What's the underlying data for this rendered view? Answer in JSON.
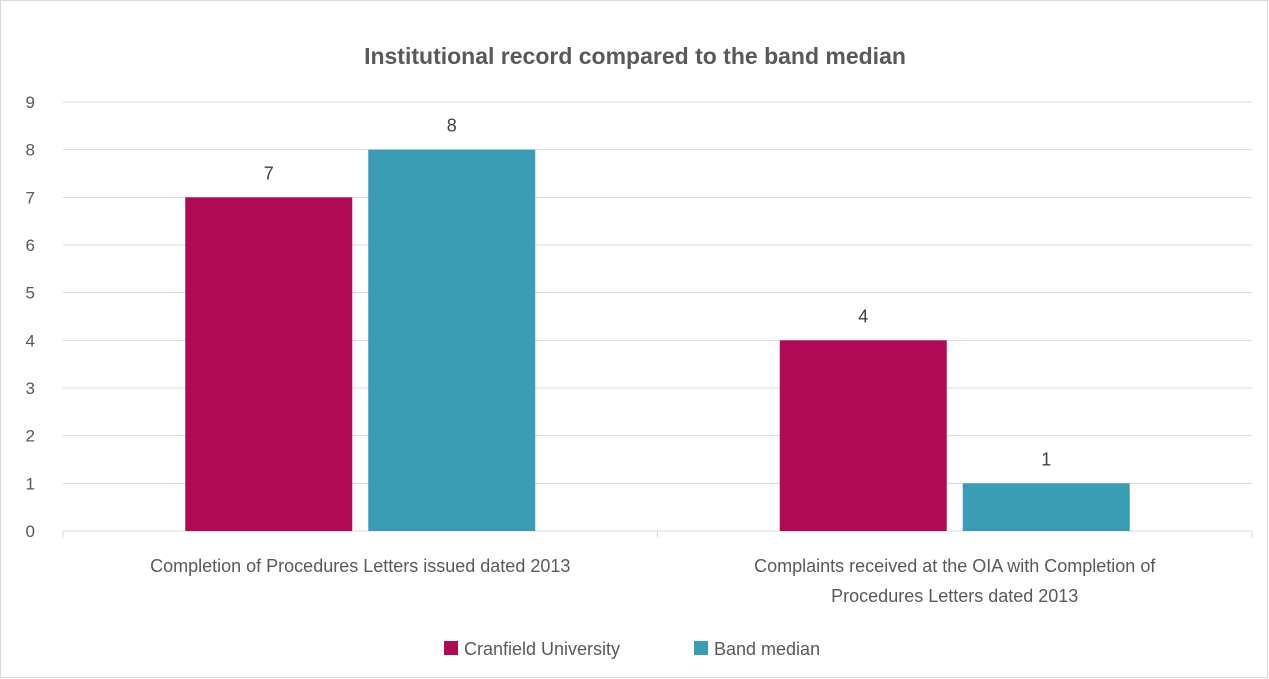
{
  "chart_data": {
    "type": "bar",
    "title": "Institutional record compared to the band median",
    "xlabel": "",
    "ylabel": "",
    "ylim": [
      0,
      9
    ],
    "yticks": [
      0,
      1,
      2,
      3,
      4,
      5,
      6,
      7,
      8,
      9
    ],
    "grid": true,
    "legend_position": "bottom",
    "categories": [
      [
        "Completion of Procedures Letters issued dated 2013"
      ],
      [
        "Complaints received at the OIA with Completion of",
        "Procedures Letters dated 2013"
      ]
    ],
    "series": [
      {
        "name": "Cranfield University",
        "color": "#b00a55",
        "values": [
          7,
          4
        ]
      },
      {
        "name": "Band median",
        "color": "#3a9db5",
        "values": [
          8,
          1
        ]
      }
    ]
  },
  "colors": {
    "gridline": "#d9d9d9",
    "text": "#595959"
  }
}
